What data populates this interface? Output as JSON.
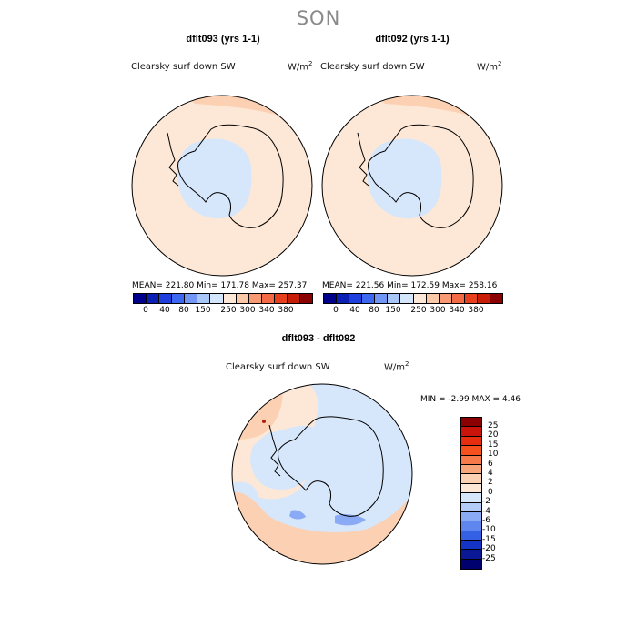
{
  "season": "SON",
  "panels": {
    "left": {
      "title": "dflt093 (yrs 1-1)",
      "variable": "Clearsky surf down SW",
      "unit_base": "W/m",
      "unit_exp": "2",
      "stats": "MEAN= 221.80   Min= 171.78   Max= 257.37"
    },
    "right": {
      "title": "dflt092 (yrs 1-1)",
      "variable": "Clearsky surf down SW",
      "unit_base": "W/m",
      "unit_exp": "2",
      "stats": "MEAN= 221.56   Min= 172.59   Max= 258.16"
    },
    "diff": {
      "title": "dflt093 - dflt092",
      "variable": "Clearsky surf down SW",
      "unit_base": "W/m",
      "unit_exp": "2",
      "stats": "MIN =   -2.99 MAX =   4.46"
    }
  },
  "colorbar_abs": {
    "labels": [
      "0",
      "40",
      "80",
      "150",
      "250",
      "300",
      "340",
      "380"
    ],
    "colors": [
      "#00008b",
      "#0a1fb4",
      "#1e3fdc",
      "#3c67f0",
      "#7196f5",
      "#a8c6fa",
      "#d4e6fc",
      "#fde8d7",
      "#fbc8a8",
      "#f89a74",
      "#f36a44",
      "#e8401c",
      "#c81e08",
      "#8b0000"
    ]
  },
  "colorbar_diff": {
    "labels": [
      "25",
      "20",
      "15",
      "10",
      "6",
      "4",
      "2",
      "0",
      "-2",
      "-4",
      "-6",
      "-10",
      "-15",
      "-20",
      "-25"
    ],
    "colors": [
      "#8b0000",
      "#c8140a",
      "#e62d10",
      "#f5501e",
      "#f77a4a",
      "#f9a57a",
      "#fcd0b2",
      "#fde8d7",
      "#d6e6fb",
      "#b4cdf8",
      "#8aaaf5",
      "#5f85ef",
      "#3460e6",
      "#1434c8",
      "#0a1896",
      "#00006e"
    ]
  },
  "map_colors": {
    "bg": "#fde8d7",
    "low": "#d6e6fb",
    "mid_warm": "#fcd0b2",
    "mid_cool": "#b4cdf8",
    "deep_cool": "#8aaaf5"
  }
}
